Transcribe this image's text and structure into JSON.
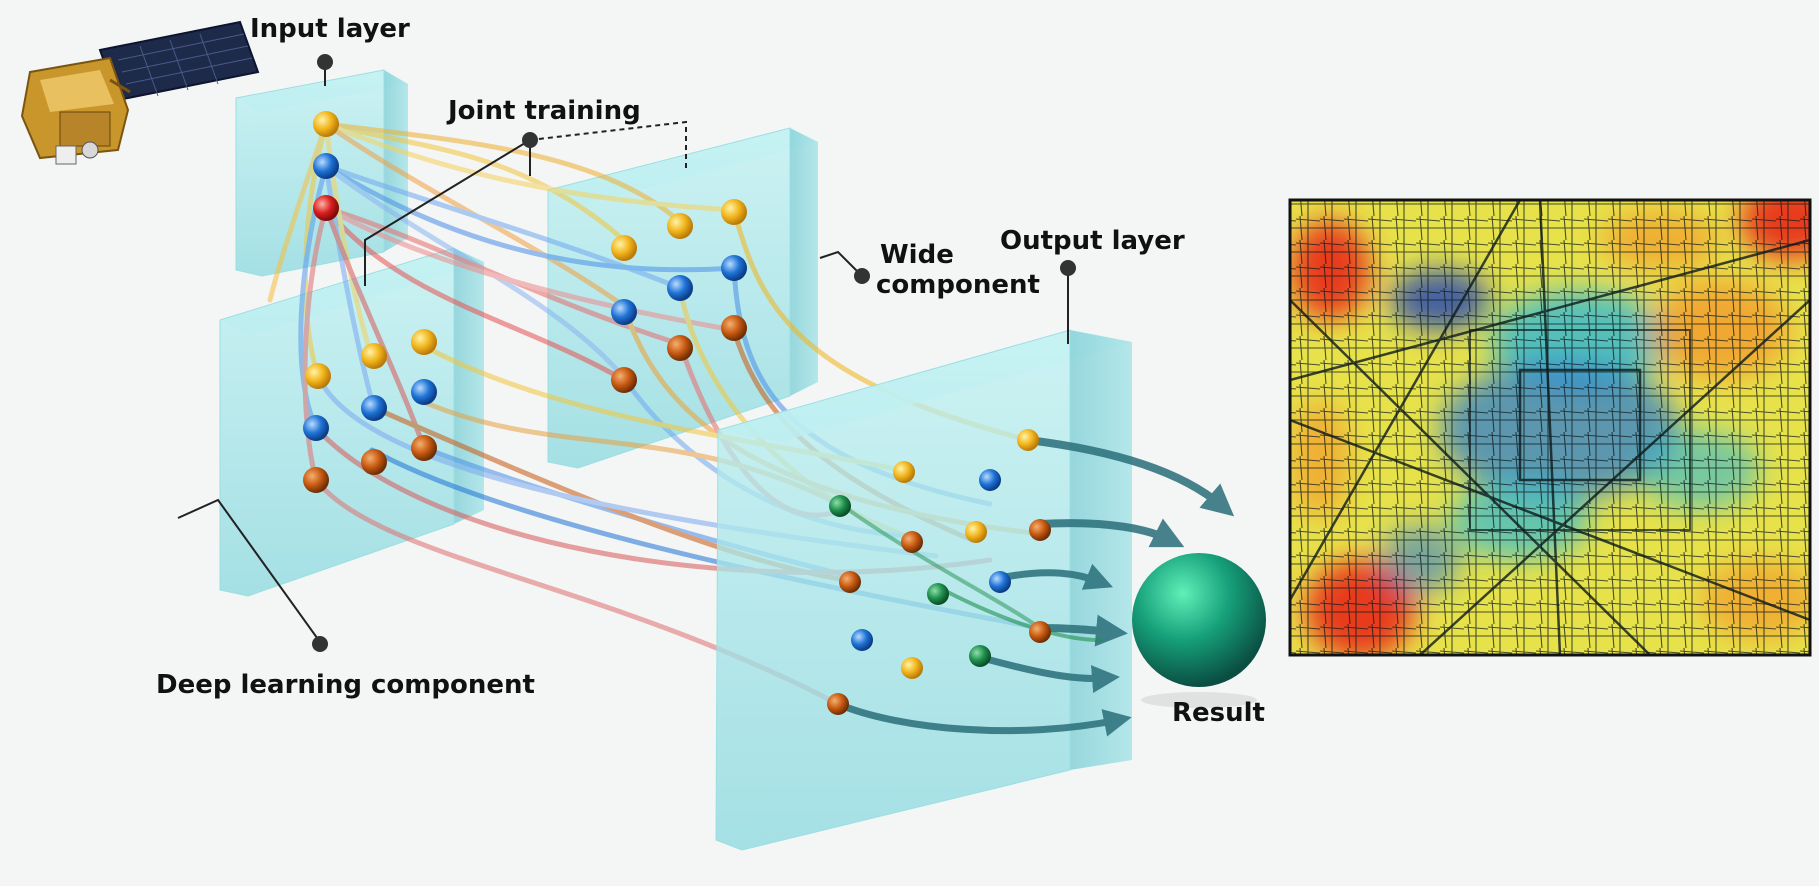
{
  "labels": {
    "input_layer": "Input layer",
    "joint_training": "Joint training",
    "wide_component_line1": "Wide",
    "wide_component_line2": "component",
    "output_layer": "Output layer",
    "deep_learning_component": "Deep learning component",
    "result": "Result"
  },
  "colors": {
    "panel": "#a8e6ea",
    "node_yellow": "#f2b51c",
    "node_blue": "#1f73d6",
    "node_red": "#d81e1e",
    "node_orange": "#c85a12",
    "node_green": "#1f8f4e",
    "result_sphere": "#16a07a",
    "arrow": "#2a6f7a",
    "map_warm": "#e83a1a",
    "map_cool": "#2f7fd0",
    "map_mid": "#e8e24a"
  },
  "icons": [
    "satellite-icon",
    "result-sphere-icon",
    "heat-map-image"
  ]
}
